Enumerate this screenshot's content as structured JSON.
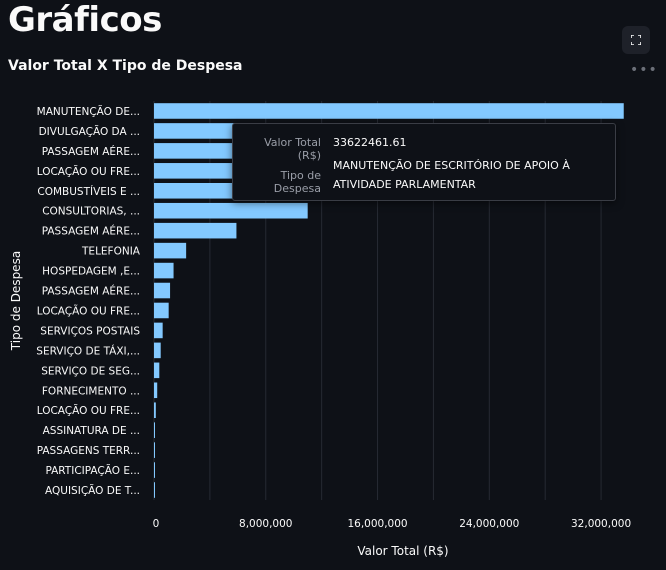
{
  "page": {
    "title": "Gráficos"
  },
  "toolbar": {
    "fullscreen_icon": "fullscreen-icon",
    "more_icon": "more-horizontal-icon"
  },
  "chart_data": {
    "type": "bar",
    "orientation": "horizontal",
    "title": "Valor Total X Tipo de Despesa",
    "xlabel": "Valor Total (R$)",
    "ylabel": "Tipo de Despesa",
    "xlim": [
      0,
      34500000
    ],
    "xticks": [
      0,
      8000000,
      16000000,
      24000000,
      32000000
    ],
    "xtick_labels": [
      "0",
      "8,000,000",
      "16,000,000",
      "24,000,000",
      "32,000,000"
    ],
    "grid": true,
    "bar_color": "#83c9ff",
    "categories": [
      "MANUTENÇÃO DE...",
      "DIVULGAÇÃO DA ...",
      "PASSAGEM AÉRE...",
      "LOCAÇÃO OU FRE...",
      "COMBUSTÍVEIS E ...",
      "CONSULTORIAS, ...",
      "PASSAGEM AÉRE...",
      "TELEFONIA",
      "HOSPEDAGEM ,E...",
      "PASSAGEM AÉRE...",
      "LOCAÇÃO OU FRE...",
      "SERVIÇOS POSTAIS",
      "SERVIÇO DE TÁXI,...",
      "SERVIÇO DE SEG...",
      "FORNECIMENTO ...",
      "LOCAÇÃO OU FRE...",
      "ASSINATURA DE ...",
      "PASSAGENS TERR...",
      "PARTICIPAÇÃO E...",
      "AQUISIÇÃO DE T..."
    ],
    "values": [
      33622461.61,
      30500000,
      26200000,
      19500000,
      16500000,
      11000000,
      5900000,
      2300000,
      1400000,
      1150000,
      1050000,
      620000,
      480000,
      380000,
      230000,
      130000,
      70000,
      45000,
      12000,
      4000
    ]
  },
  "tooltip": {
    "rows": [
      {
        "key": "Valor Total (R$)",
        "value": "33622461.61"
      },
      {
        "key": "Tipo de Despesa",
        "value": "MANUTENÇÃO DE ESCRITÓRIO DE APOIO À ATIVIDADE PARLAMENTAR"
      }
    ]
  }
}
